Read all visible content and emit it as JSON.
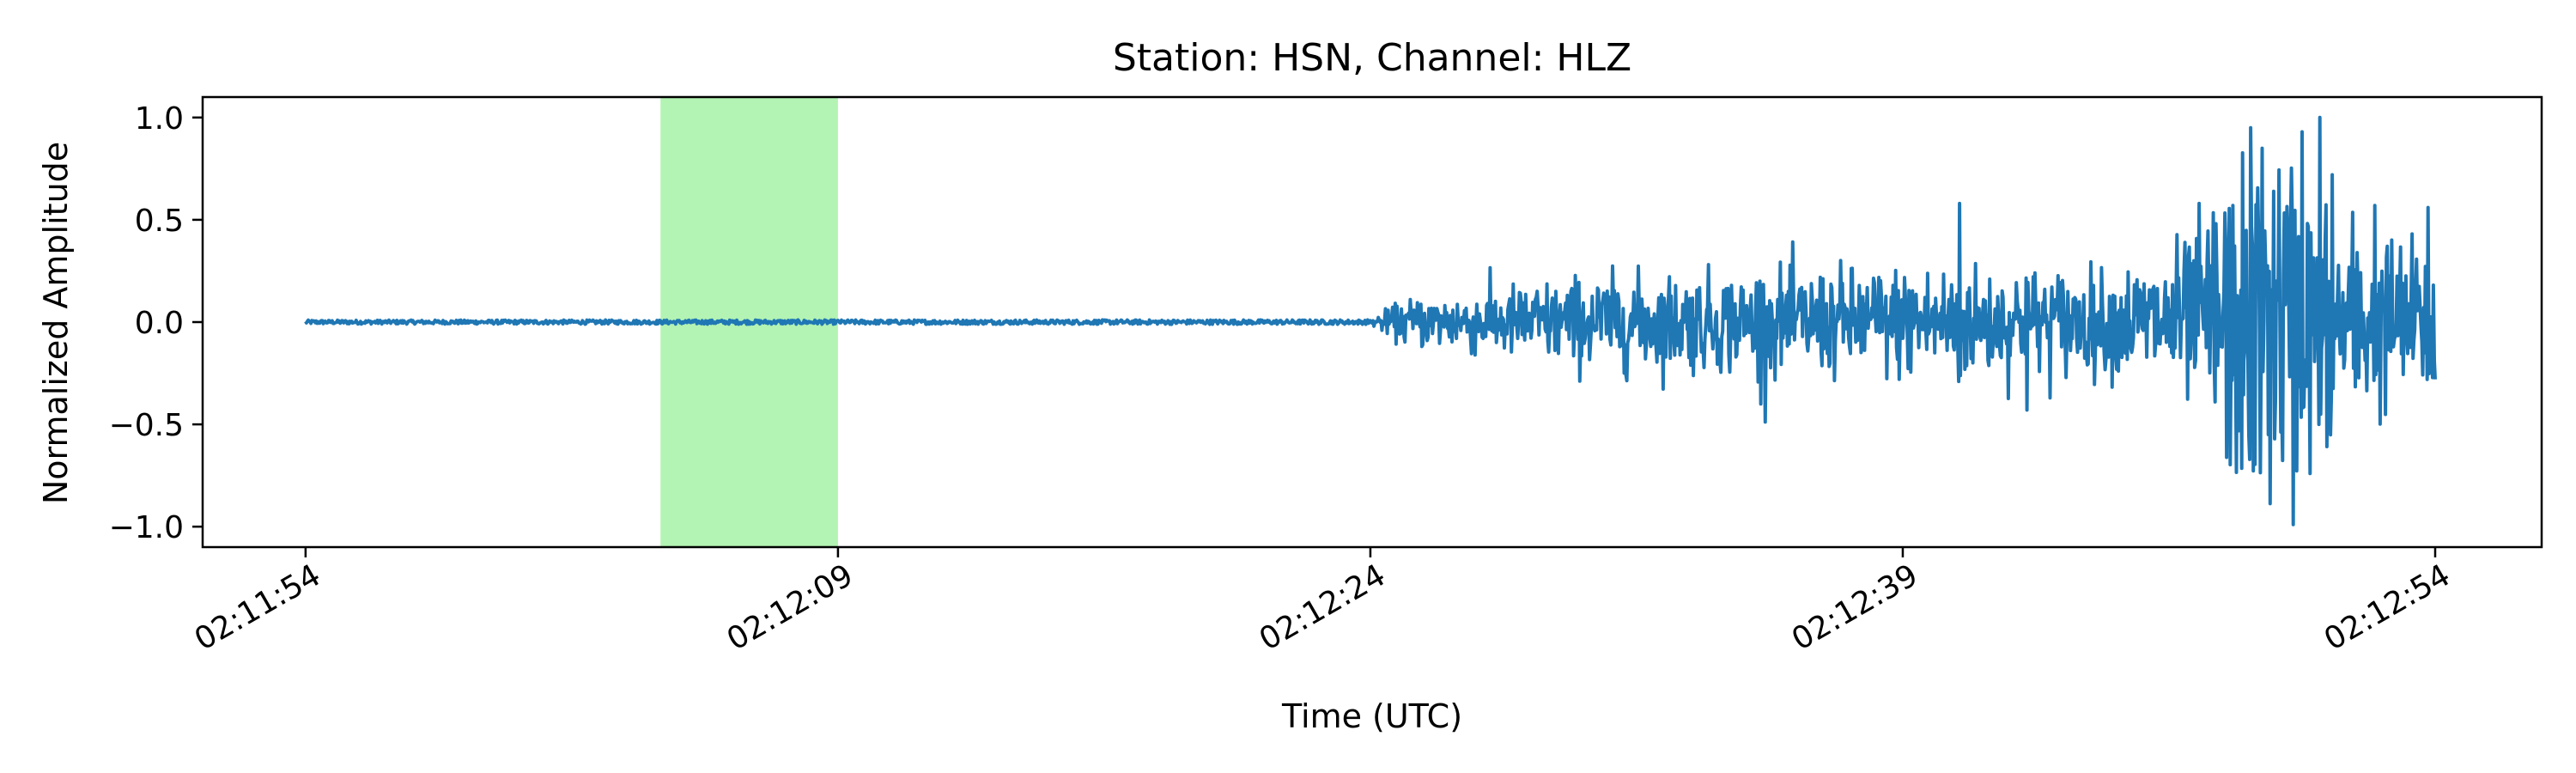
{
  "chart_data": {
    "type": "line",
    "title": "Station: HSN, Channel: HLZ",
    "xlabel": "Time (UTC)",
    "ylabel": "Normalized Amplitude",
    "x_range_seconds_of_day": [
      7914,
      7974
    ],
    "x_axis": {
      "tick_labels": [
        "02:11:54",
        "02:12:09",
        "02:12:24",
        "02:12:39",
        "02:12:54"
      ],
      "tick_values": [
        7914,
        7929,
        7944,
        7959,
        7974
      ]
    },
    "y_axis": {
      "tick_labels": [
        "1.0",
        "0.5",
        "0.0",
        "−0.5",
        "−1.0"
      ],
      "tick_values": [
        1.0,
        0.5,
        0.0,
        -0.5,
        -1.0
      ]
    },
    "xlim": [
      7911.1,
      7977.0
    ],
    "ylim": [
      -1.1,
      1.1
    ],
    "grid": false,
    "highlight_span": {
      "x_start": 7924.0,
      "x_end": 7929.0,
      "color": "#b3f3b3"
    },
    "series": [
      {
        "color": "#1f77b4",
        "envelope": [
          {
            "x": 7914,
            "amp": 0.012
          },
          {
            "x": 7944,
            "amp": 0.014
          },
          {
            "x": 7945,
            "amp": 0.1
          },
          {
            "x": 7950,
            "amp": 0.2
          },
          {
            "x": 7955,
            "amp": 0.22
          },
          {
            "x": 7960,
            "amp": 0.25
          },
          {
            "x": 7965,
            "amp": 0.22
          },
          {
            "x": 7967,
            "amp": 0.35
          },
          {
            "x": 7969,
            "amp": 0.9
          },
          {
            "x": 7971,
            "amp": 0.5
          },
          {
            "x": 7974,
            "amp": 0.3
          }
        ],
        "peaks": [
          {
            "x": 7970.0,
            "y": -0.99
          },
          {
            "x": 7970.25,
            "y": 0.93
          },
          {
            "x": 7970.75,
            "y": 1.0
          },
          {
            "x": 7971.1,
            "y": 0.72
          },
          {
            "x": 7960.6,
            "y": 0.58
          },
          {
            "x": 7968.3,
            "y": 0.57
          },
          {
            "x": 7973.8,
            "y": 0.56
          },
          {
            "x": 7969.3,
            "y": -0.55
          },
          {
            "x": 7972.3,
            "y": 0.57
          },
          {
            "x": 7955.0,
            "y": -0.4
          },
          {
            "x": 7962.5,
            "y": -0.43
          }
        ]
      }
    ]
  }
}
